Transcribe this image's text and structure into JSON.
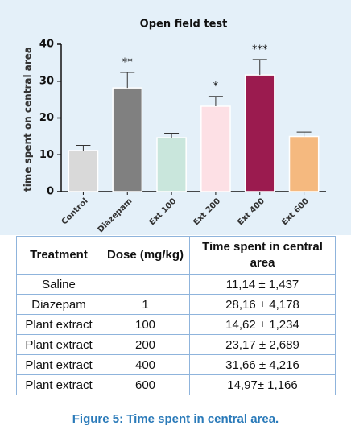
{
  "chart_data": {
    "type": "bar",
    "title": "Open field test",
    "y_label": "time spent on central area",
    "categories": [
      "Control",
      "Diazepam",
      "Ext 100",
      "Ext 200",
      "Ext 400",
      "Ext 600"
    ],
    "values": [
      11.14,
      28.16,
      14.62,
      23.17,
      31.66,
      14.97
    ],
    "errors": [
      1.437,
      4.178,
      1.234,
      2.689,
      4.216,
      1.166
    ],
    "value_annotations": [
      null,
      "**",
      null,
      "*",
      "***",
      null
    ],
    "colors": [
      "#d9d9d9",
      "#808080",
      "#c9e6dc",
      "#fde0e5",
      "#9b1b4f",
      "#f5b97f"
    ],
    "ylim": [
      0,
      40
    ],
    "yticks": [
      0,
      10,
      20,
      30,
      40
    ],
    "grid": false
  },
  "table": {
    "header": [
      "Treatment",
      "Dose (mg/kg)",
      "Time spent in central area"
    ],
    "rows": [
      [
        "Saline",
        null,
        "11,14 ± 1,437"
      ],
      [
        "Diazepam",
        "1",
        "28,16 ± 4,178"
      ],
      [
        "Plant extract",
        "100",
        "14,62 ± 1,234"
      ],
      [
        "Plant extract",
        "200",
        "23,17 ± 2,689"
      ],
      [
        "Plant extract",
        "400",
        "31,66 ± 4,216"
      ],
      [
        "Plant extract",
        "600",
        "14,97± 1,166"
      ]
    ]
  },
  "caption": "Figure 5: Time spent in central area."
}
